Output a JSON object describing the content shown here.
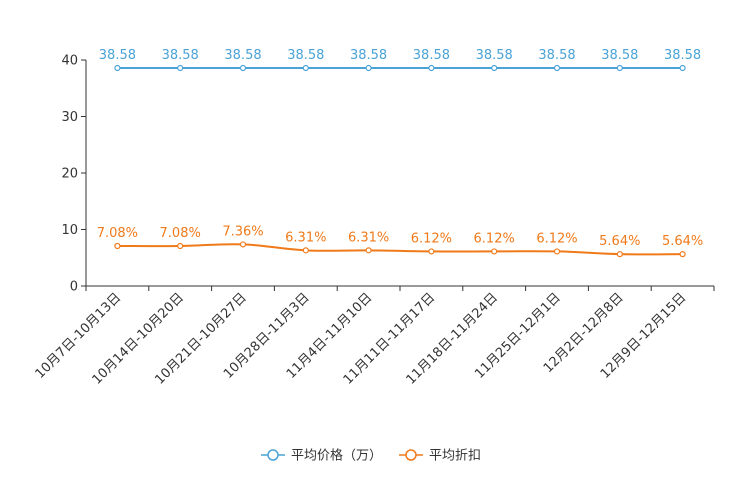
{
  "chart_data": {
    "type": "line",
    "categories": [
      "10月7日-10月13日",
      "10月14日-10月20日",
      "10月21日-10月27日",
      "10月28日-11月3日",
      "11月4日-11月10日",
      "11月11日-11月17日",
      "11月18日-11月24日",
      "11月25日-12月1日",
      "12月2日-12月8日",
      "12月9日-12月15日"
    ],
    "ylim": [
      0,
      40
    ],
    "yticks": [
      0,
      10,
      20,
      30,
      40
    ],
    "series": [
      {
        "name": "平均价格（万）",
        "color": "#4aa3d6",
        "values": [
          38.58,
          38.58,
          38.58,
          38.58,
          38.58,
          38.58,
          38.58,
          38.58,
          38.58,
          38.58
        ],
        "labels": [
          "38.58",
          "38.58",
          "38.58",
          "38.58",
          "38.58",
          "38.58",
          "38.58",
          "38.58",
          "38.58",
          "38.58"
        ]
      },
      {
        "name": "平均折扣",
        "color": "#f07a1a",
        "values": [
          7.08,
          7.08,
          7.36,
          6.31,
          6.31,
          6.12,
          6.12,
          6.12,
          5.64,
          5.64
        ],
        "labels": [
          "7.08%",
          "7.08%",
          "7.36%",
          "6.31%",
          "6.31%",
          "6.12%",
          "6.12%",
          "6.12%",
          "5.64%",
          "5.64%"
        ]
      }
    ],
    "legend_position": "bottom-center"
  }
}
